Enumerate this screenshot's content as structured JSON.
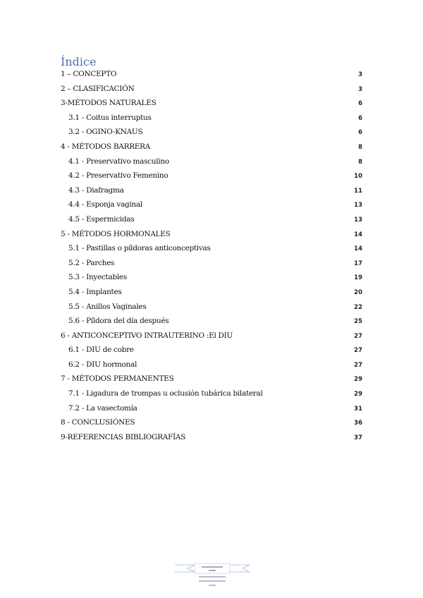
{
  "title": "Índice",
  "entries": [
    {
      "label": "1 – CONCEPTO",
      "page": "3",
      "level": 1
    },
    {
      "label": "2 – CLASIFICACIÓN",
      "page": "3",
      "level": 1
    },
    {
      "label": "3-MÉTODOS NATURALES",
      "page": "6",
      "level": 1
    },
    {
      "label": "3.1 - Coitus interruptus",
      "page": "6",
      "level": 2
    },
    {
      "label": "3.2 - OGINO-KNAUS",
      "page": "6",
      "level": 2
    },
    {
      "label": "4 - MÉTODOS BARRERA",
      "page": "8",
      "level": 1
    },
    {
      "label": "4.1 - Preservativo masculino",
      "page": "8",
      "level": 2
    },
    {
      "label": "4.2 - Preservativo Femenino",
      "page": "10",
      "level": 2
    },
    {
      "label": "4.3 - Diafragma",
      "page": "11",
      "level": 2
    },
    {
      "label": "4.4 - Esponja vaginal",
      "page": "13",
      "level": 2
    },
    {
      "label": "4.5 - Espermicidas",
      "page": "13",
      "level": 2
    },
    {
      "label": "5 - MÉTODOS HORMONALES",
      "page": "14",
      "level": 1
    },
    {
      "label": "5.1 - Pastillas o píldoras anticonceptivas",
      "page": "14",
      "level": 2
    },
    {
      "label": "5.2 - Parches",
      "page": "17",
      "level": 2
    },
    {
      "label": "5.3 - Inyectables",
      "page": "19",
      "level": 2
    },
    {
      "label": "5.4 - Implantes",
      "page": "20",
      "level": 2
    },
    {
      "label": "5.5 - Anillos Vaginales",
      "page": "22",
      "level": 2
    },
    {
      "label": "5.6 - Píldora del día después",
      "page": "25",
      "level": 2
    },
    {
      "label": "6 - ANTICONCEPTIVO INTRAUTERINO :El DIU",
      "page": "27",
      "level": 1
    },
    {
      "label": "6.1 - DIU de cobre",
      "page": "27",
      "level": 2
    },
    {
      "label": "6.2 - DIU hormonal",
      "page": "27",
      "level": 2
    },
    {
      "label": "7 - MÉTODOS PERMANENTES",
      "page": "29",
      "level": 1
    },
    {
      "label": "7.1 - Ligadura de trompas u oclusión tubárica bilateral",
      "page": "29",
      "level": 2
    },
    {
      "label": "7.2 - La vasectomía",
      "page": "31",
      "level": 2
    },
    {
      "label": "8 - CONCLUSIÓNES",
      "page": "36",
      "level": 1
    },
    {
      "label": "9-REFERENCIAS BIBLIOGRAFÍAS",
      "page": "37",
      "level": 1
    }
  ],
  "colors": {
    "title": "#4a72a8"
  },
  "footer_logo": {
    "icon": "institution-logo"
  }
}
